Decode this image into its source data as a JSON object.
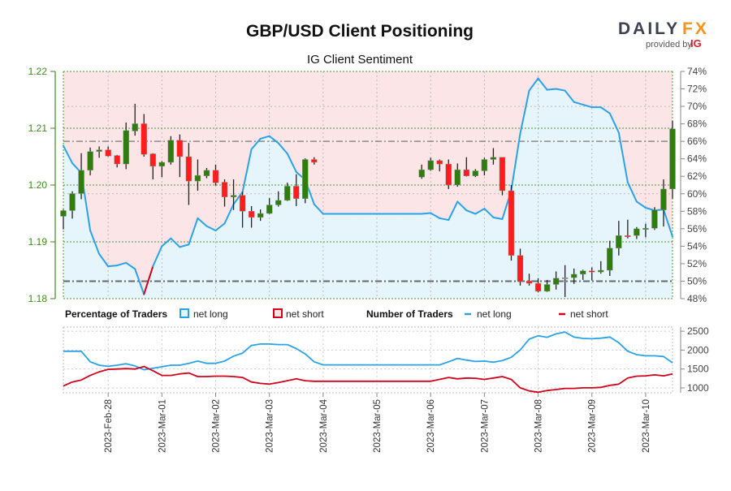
{
  "header": {
    "title": "GBP/USD Client Positioning",
    "subtitle": "IG Client Sentiment",
    "logo": {
      "brand_dark": "DAILY",
      "brand_accent": "FX",
      "provided_by": "provided by",
      "provider": "IG"
    }
  },
  "legend": {
    "pct_title": "Percentage of Traders",
    "pct_long": "net long",
    "pct_short": "net short",
    "num_title": "Number of Traders",
    "num_long": "net long",
    "num_short": "net short"
  },
  "colors": {
    "long": "#2aa3e6",
    "short": "#d0021b",
    "long_fill": "#e6f4fc",
    "short_fill": "#fbe5e6",
    "up_candle": "#2f7d0f",
    "down_candle": "#ff1c1c",
    "price_axis": "#3d8a1c",
    "logo_dark": "#3c4150",
    "logo_accent": "#f7931e",
    "ig": "#e01e2b"
  },
  "chart_data": {
    "type": "candlestick+line",
    "title": "GBP/USD Client Positioning",
    "subtitle": "IG Client Sentiment",
    "grid": true,
    "x_range": [
      "2023-02-27 04:00",
      "2023-03-10 12:00"
    ],
    "x_ticks": [
      {
        "date": "2023-02-28 00:00",
        "label": "2023-Feb-28"
      },
      {
        "date": "2023-03-01 00:00",
        "label": "2023-Mar-01"
      },
      {
        "date": "2023-03-02 00:00",
        "label": "2023-Mar-02"
      },
      {
        "date": "2023-03-03 00:00",
        "label": "2023-Mar-03"
      },
      {
        "date": "2023-03-04 00:00",
        "label": "2023-Mar-04"
      },
      {
        "date": "2023-03-05 00:00",
        "label": "2023-Mar-05"
      },
      {
        "date": "2023-03-06 00:00",
        "label": "2023-Mar-06"
      },
      {
        "date": "2023-03-07 00:00",
        "label": "2023-Mar-07"
      },
      {
        "date": "2023-03-08 00:00",
        "label": "2023-Mar-08"
      },
      {
        "date": "2023-03-09 00:00",
        "label": "2023-Mar-09"
      },
      {
        "date": "2023-03-10 00:00",
        "label": "2023-Mar-10"
      }
    ],
    "x": [
      "2023-02-27 04:00",
      "2023-02-27 08:00",
      "2023-02-27 12:00",
      "2023-02-27 16:00",
      "2023-02-27 20:00",
      "2023-02-28 00:00",
      "2023-02-28 04:00",
      "2023-02-28 08:00",
      "2023-02-28 12:00",
      "2023-02-28 16:00",
      "2023-02-28 20:00",
      "2023-03-01 00:00",
      "2023-03-01 04:00",
      "2023-03-01 08:00",
      "2023-03-01 12:00",
      "2023-03-01 16:00",
      "2023-03-01 20:00",
      "2023-03-02 00:00",
      "2023-03-02 04:00",
      "2023-03-02 08:00",
      "2023-03-02 12:00",
      "2023-03-02 16:00",
      "2023-03-02 20:00",
      "2023-03-03 00:00",
      "2023-03-03 04:00",
      "2023-03-03 08:00",
      "2023-03-03 12:00",
      "2023-03-03 16:00",
      "2023-03-03 20:00",
      "2023-03-04 00:00",
      "2023-03-04 04:00",
      "2023-03-04 08:00",
      "2023-03-04 12:00",
      "2023-03-04 16:00",
      "2023-03-04 20:00",
      "2023-03-05 00:00",
      "2023-03-05 04:00",
      "2023-03-05 08:00",
      "2023-03-05 12:00",
      "2023-03-05 16:00",
      "2023-03-05 20:00",
      "2023-03-06 00:00",
      "2023-03-06 04:00",
      "2023-03-06 08:00",
      "2023-03-06 12:00",
      "2023-03-06 16:00",
      "2023-03-06 20:00",
      "2023-03-07 00:00",
      "2023-03-07 04:00",
      "2023-03-07 08:00",
      "2023-03-07 12:00",
      "2023-03-07 16:00",
      "2023-03-07 20:00",
      "2023-03-08 00:00",
      "2023-03-08 04:00",
      "2023-03-08 08:00",
      "2023-03-08 12:00",
      "2023-03-08 16:00",
      "2023-03-08 20:00",
      "2023-03-09 00:00",
      "2023-03-09 04:00",
      "2023-03-09 08:00",
      "2023-03-09 12:00",
      "2023-03-09 16:00",
      "2023-03-09 20:00",
      "2023-03-10 00:00",
      "2023-03-10 04:00",
      "2023-03-10 08:00",
      "2023-03-10 12:00"
    ],
    "price": {
      "ylim": [
        1.18,
        1.22
      ],
      "ticks": [
        "1.22",
        "1.21",
        "1.20",
        "1.19",
        "1.18"
      ],
      "candle_fields": [
        "open",
        "high",
        "low",
        "close"
      ],
      "candles": [
        [
          1.1945,
          1.1957,
          1.1922,
          1.1955
        ],
        [
          1.1955,
          1.1989,
          1.1941,
          1.1985
        ],
        [
          1.1985,
          1.2056,
          1.1975,
          1.2026
        ],
        [
          1.2026,
          1.2066,
          1.2017,
          1.2059
        ],
        [
          1.2059,
          1.2068,
          1.2048,
          1.2062
        ],
        [
          1.2062,
          1.2068,
          1.205,
          1.2051
        ],
        [
          1.2052,
          1.2053,
          1.2031,
          1.2037
        ],
        [
          1.2037,
          1.211,
          1.2028,
          1.2096
        ],
        [
          1.2095,
          1.2143,
          1.2087,
          1.2108
        ],
        [
          1.2108,
          1.2125,
          1.205,
          1.2054
        ],
        [
          1.2055,
          1.2056,
          1.201,
          1.2033
        ],
        [
          1.2033,
          1.2042,
          1.2014,
          1.204
        ],
        [
          1.204,
          1.2086,
          1.2036,
          1.2079
        ],
        [
          1.2079,
          1.2089,
          1.2014,
          1.205
        ],
        [
          1.205,
          1.2074,
          1.1965,
          1.2007
        ],
        [
          1.2007,
          1.2045,
          1.199,
          1.2017
        ],
        [
          1.2016,
          1.203,
          1.2012,
          1.2026
        ],
        [
          1.2026,
          1.2036,
          1.1999,
          1.2004
        ],
        [
          1.2005,
          1.201,
          1.1962,
          1.1979
        ],
        [
          1.1979,
          1.201,
          1.1956,
          1.1982
        ],
        [
          1.1982,
          1.1988,
          1.1925,
          1.1954
        ],
        [
          1.1954,
          1.1963,
          1.1925,
          1.1943
        ],
        [
          1.1943,
          1.1957,
          1.1937,
          1.195
        ],
        [
          1.195,
          1.1977,
          1.1949,
          1.1965
        ],
        [
          1.1965,
          1.1989,
          1.1962,
          1.1973
        ],
        [
          1.1973,
          1.2004,
          1.1972,
          1.1998
        ],
        [
          1.1998,
          1.2019,
          1.1963,
          1.1976
        ],
        [
          1.1976,
          1.2047,
          1.1968,
          1.2045
        ],
        [
          1.2045,
          1.2049,
          1.2036,
          1.204
        ],
        null,
        null,
        null,
        null,
        null,
        null,
        null,
        null,
        null,
        null,
        null,
        [
          1.2014,
          1.2036,
          1.2011,
          1.2027
        ],
        [
          1.2027,
          1.2048,
          1.2025,
          1.2043
        ],
        [
          1.2043,
          1.2045,
          1.2024,
          1.2037
        ],
        [
          1.2037,
          1.2045,
          1.1993,
          1.2
        ],
        [
          1.2,
          1.2038,
          1.1997,
          1.2027
        ],
        [
          1.2027,
          1.2049,
          1.2015,
          1.2016
        ],
        [
          1.2016,
          1.2028,
          1.2014,
          1.2025
        ],
        [
          1.2025,
          1.2048,
          1.2017,
          1.2045
        ],
        [
          1.2045,
          1.2065,
          1.2036,
          1.2049
        ],
        [
          1.2049,
          1.2049,
          1.1982,
          1.199
        ],
        [
          1.199,
          1.2,
          1.1867,
          1.1876
        ],
        [
          1.1876,
          1.1888,
          1.1823,
          1.183
        ],
        [
          1.1831,
          1.1844,
          1.1823,
          1.1827
        ],
        [
          1.1827,
          1.1836,
          1.1811,
          1.1813
        ],
        [
          1.1813,
          1.1833,
          1.1812,
          1.1825
        ],
        [
          1.1825,
          1.1848,
          1.1816,
          1.1836
        ],
        [
          1.1837,
          1.1859,
          1.1803,
          1.1837
        ],
        [
          1.1837,
          1.1853,
          1.1826,
          1.1843
        ],
        [
          1.1843,
          1.1851,
          1.1833,
          1.1849
        ],
        [
          1.1849,
          1.1855,
          1.1832,
          1.1848
        ],
        [
          1.1847,
          1.1866,
          1.1844,
          1.185
        ],
        [
          1.185,
          1.1902,
          1.184,
          1.1889
        ],
        [
          1.1889,
          1.1937,
          1.1876,
          1.1911
        ],
        [
          1.1911,
          1.1939,
          1.1906,
          1.191
        ],
        [
          1.1911,
          1.1926,
          1.1905,
          1.1923
        ],
        [
          1.1922,
          1.1932,
          1.1908,
          1.1924
        ],
        [
          1.1924,
          1.1961,
          1.1921,
          1.1956
        ],
        [
          1.1956,
          1.201,
          1.1927,
          1.1993
        ],
        [
          1.1993,
          1.2113,
          1.1976,
          1.2099
        ]
      ]
    },
    "sentiment": {
      "name": "net long",
      "unit": "%",
      "ylim": [
        48,
        74
      ],
      "ticks": [
        "74%",
        "72%",
        "70%",
        "68%",
        "66%",
        "64%",
        "62%",
        "60%",
        "58%",
        "56%",
        "54%",
        "52%",
        "50%",
        "48%"
      ],
      "reference_lines": [
        50,
        66
      ],
      "values": [
        65.5,
        63.5,
        62.4,
        55.8,
        53.1,
        51.7,
        51.8,
        52.1,
        51.4,
        48.5,
        51.7,
        54.0,
        54.9,
        53.9,
        54.2,
        57.2,
        56.3,
        55.8,
        56.6,
        58.8,
        60.2,
        65.1,
        66.3,
        66.6,
        65.8,
        64.6,
        62.5,
        61.6,
        58.8,
        57.7,
        57.7,
        57.7,
        57.7,
        57.7,
        57.7,
        57.7,
        57.7,
        57.7,
        57.7,
        57.7,
        57.7,
        57.8,
        57.2,
        57.0,
        59.1,
        58.1,
        57.7,
        58.3,
        57.3,
        57.1,
        60.4,
        66.9,
        71.8,
        73.2,
        71.9,
        72.0,
        71.8,
        70.5,
        70.2,
        69.9,
        69.9,
        69.2,
        67.0,
        61.3,
        59.1,
        58.4,
        58.1,
        58.2,
        55.1
      ]
    },
    "traders": {
      "ylim": [
        870,
        2610
      ],
      "ticks": [
        "2500",
        "2000",
        "1500",
        "1000"
      ],
      "tick_values": [
        2500,
        2000,
        1500,
        1000
      ],
      "series": [
        {
          "name": "net long",
          "values": [
            1970,
            1970,
            1970,
            1690,
            1600,
            1570,
            1600,
            1640,
            1580,
            1480,
            1520,
            1560,
            1600,
            1600,
            1650,
            1710,
            1650,
            1650,
            1710,
            1840,
            1920,
            2125,
            2160,
            2160,
            2145,
            2145,
            2040,
            1900,
            1690,
            1610,
            1610,
            1610,
            1610,
            1610,
            1610,
            1610,
            1610,
            1610,
            1610,
            1610,
            1610,
            1610,
            1610,
            1690,
            1780,
            1735,
            1700,
            1710,
            1680,
            1720,
            1810,
            2005,
            2290,
            2380,
            2340,
            2430,
            2480,
            2345,
            2310,
            2300,
            2315,
            2345,
            2195,
            1970,
            1880,
            1850,
            1850,
            1830,
            1665
          ]
        },
        {
          "name": "net short",
          "values": [
            1050,
            1155,
            1210,
            1330,
            1425,
            1490,
            1500,
            1510,
            1500,
            1565,
            1455,
            1330,
            1330,
            1370,
            1395,
            1300,
            1300,
            1310,
            1310,
            1300,
            1275,
            1155,
            1120,
            1100,
            1140,
            1190,
            1240,
            1190,
            1175,
            1175,
            1175,
            1175,
            1175,
            1175,
            1175,
            1175,
            1175,
            1175,
            1175,
            1175,
            1175,
            1175,
            1225,
            1275,
            1240,
            1260,
            1255,
            1225,
            1260,
            1300,
            1225,
            1000,
            920,
            885,
            930,
            955,
            985,
            985,
            1000,
            1000,
            1015,
            1065,
            1100,
            1260,
            1310,
            1320,
            1345,
            1320,
            1370
          ]
        }
      ]
    }
  }
}
